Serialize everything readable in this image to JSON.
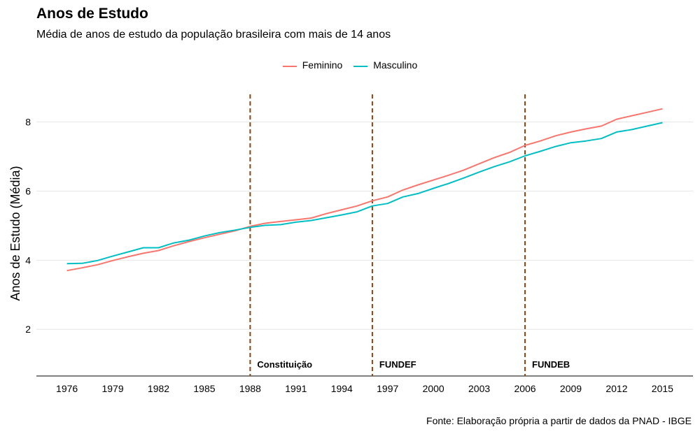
{
  "chart_data": {
    "type": "line",
    "title": "Anos de Estudo",
    "subtitle": "Média de anos de estudo da população brasileira com mais de 14 anos",
    "ylabel": "Anos de Estudo (Média)",
    "xlabel": "",
    "caption": "Fonte: Elaboração própria a partir de dados da PNAD - IBGE",
    "legend_position": "top",
    "grid": true,
    "xlim": [
      1974,
      2017
    ],
    "ylim": [
      0.65,
      8.9
    ],
    "x_ticks": [
      1976,
      1979,
      1982,
      1985,
      1988,
      1991,
      1994,
      1997,
      2000,
      2003,
      2006,
      2009,
      2012,
      2015
    ],
    "y_ticks": [
      2,
      4,
      6,
      8
    ],
    "x": [
      1976,
      1977,
      1978,
      1979,
      1980,
      1981,
      1982,
      1983,
      1984,
      1985,
      1986,
      1987,
      1988,
      1989,
      1990,
      1991,
      1992,
      1993,
      1994,
      1995,
      1996,
      1997,
      1998,
      1999,
      2000,
      2001,
      2002,
      2003,
      2004,
      2005,
      2006,
      2007,
      2008,
      2009,
      2010,
      2011,
      2012,
      2013,
      2014,
      2015
    ],
    "series": [
      {
        "name": "Feminino",
        "color": "#F8766D",
        "values": [
          3.7,
          3.78,
          3.87,
          3.99,
          4.1,
          4.2,
          4.28,
          4.42,
          4.54,
          4.65,
          4.75,
          4.85,
          4.98,
          5.07,
          5.12,
          5.17,
          5.22,
          5.35,
          5.46,
          5.57,
          5.72,
          5.83,
          6.03,
          6.18,
          6.32,
          6.46,
          6.61,
          6.79,
          6.97,
          7.12,
          7.32,
          7.45,
          7.6,
          7.71,
          7.8,
          7.88,
          8.08,
          8.18,
          8.28,
          8.38
        ]
      },
      {
        "name": "Masculino",
        "color": "#00BFC4",
        "values": [
          3.9,
          3.91,
          3.99,
          4.12,
          4.24,
          4.36,
          4.36,
          4.5,
          4.58,
          4.7,
          4.8,
          4.87,
          4.95,
          5.01,
          5.03,
          5.1,
          5.15,
          5.23,
          5.31,
          5.4,
          5.57,
          5.64,
          5.83,
          5.93,
          6.08,
          6.22,
          6.38,
          6.55,
          6.71,
          6.85,
          7.02,
          7.15,
          7.29,
          7.4,
          7.45,
          7.52,
          7.71,
          7.78,
          7.88,
          7.98
        ]
      }
    ],
    "vlines": [
      {
        "x": 1988,
        "label": "Constituição"
      },
      {
        "x": 1996,
        "label": "FUNDEF"
      },
      {
        "x": 2006,
        "label": "FUNDEB"
      }
    ],
    "vline_color": "#8B4513"
  }
}
